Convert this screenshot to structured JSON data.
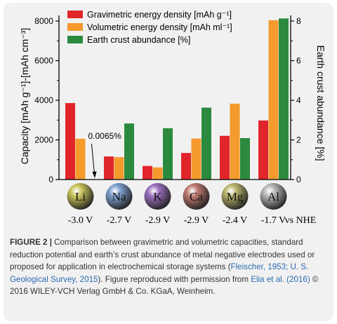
{
  "chart_data": {
    "type": "bar",
    "categories": [
      "Li",
      "Na",
      "K",
      "Ca",
      "Mg",
      "Al"
    ],
    "potentials": [
      "-3.0 V",
      "-2.7 V",
      "-2.9 V",
      "-2.9 V",
      "-2.4 V",
      "-1.7 V"
    ],
    "reference_label": "vs NHE",
    "series": [
      {
        "name": "Gravimetric energy density [mAh g⁻¹]",
        "axis": "left",
        "color": "#e0262b",
        "values": [
          3860,
          1165,
          685,
          1340,
          2205,
          2980
        ]
      },
      {
        "name": "Volumetric energy density [mAh ml⁻¹]",
        "axis": "left",
        "color": "#f59a2d",
        "values": [
          2060,
          1130,
          610,
          2070,
          3830,
          8040
        ]
      },
      {
        "name": "Earth crust abundance [%]",
        "axis": "right",
        "color": "#2b8a3e",
        "values": [
          0.0065,
          2.83,
          2.59,
          3.63,
          2.09,
          8.13
        ]
      }
    ],
    "annotation": "0.0065%",
    "ylabel_left": "Capacity [mAh g⁻¹]-[mAh cm⁻³]",
    "ylabel_right": "Earth crust abundance [%]",
    "ylim_left": [
      0,
      8000
    ],
    "ylim_right": [
      0,
      8
    ],
    "yticks_left": [
      0,
      2000,
      4000,
      6000,
      8000
    ],
    "yticks_right": [
      0,
      2,
      4,
      6,
      8
    ],
    "grid": false,
    "legend_position": "top-left",
    "sphere_colors": [
      "#c9c45a",
      "#7fa0cf",
      "#9a70c0",
      "#bf7a72",
      "#bcb66e",
      "#b7b7b7"
    ]
  },
  "caption": {
    "label": "FIGURE 2 |",
    "text_1": " Comparison between gravimetric and volumetric capacities, standard reduction potential and earth’s crust abundance of metal negative electrodes used or proposed for application in electrochemical storage systems (",
    "ref_1": "Fleischer, 1953; U. S. Geological Survey, 2015",
    "text_2": "). Figure reproduced with permission from ",
    "ref_2": "Elia et al. (2016)",
    "text_3": " © 2016 WILEY-VCH Verlag GmbH & Co. KGaA, Weinheim."
  }
}
